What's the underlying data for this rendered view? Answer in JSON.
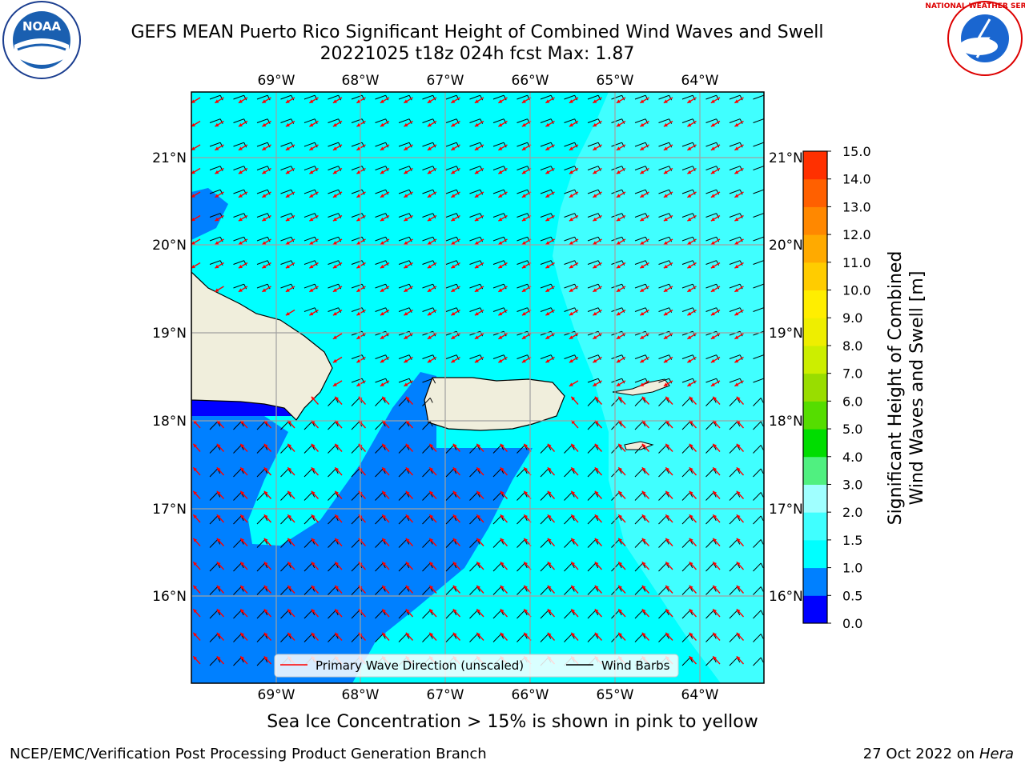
{
  "header": {
    "title_line1": "GEFS MEAN Puerto Rico Significant Height of Combined Wind Waves and Swell",
    "title_line2": "20221025 t18z 024h fcst   Max: 1.87"
  },
  "logos": {
    "noaa_text": "NOAA",
    "nws_text": "NATIONAL WEATHER SERVICE"
  },
  "map": {
    "lon_ticks": [
      "69°W",
      "68°W",
      "67°W",
      "66°W",
      "65°W",
      "64°W"
    ],
    "lat_ticks": [
      "21°N",
      "20°N",
      "19°N",
      "18°N",
      "17°N",
      "16°N"
    ],
    "legend": {
      "wave_label": "Primary Wave Direction (unscaled)",
      "barb_label": "Wind Barbs",
      "wave_color": "#ff0000",
      "barb_color": "#000000"
    }
  },
  "colorbar": {
    "label_line1": "Significant Height of Combined",
    "label_line2": "Wind Waves and Swell [m]",
    "ticks": [
      "0.0",
      "0.5",
      "1.0",
      "1.5",
      "2.0",
      "3.0",
      "4.0",
      "5.0",
      "6.0",
      "7.0",
      "8.0",
      "9.0",
      "10.0",
      "11.0",
      "12.0",
      "13.0",
      "14.0",
      "15.0"
    ],
    "colors": [
      "#0000ff",
      "#0080ff",
      "#00ffff",
      "#40ffff",
      "#a0ffff",
      "#50f080",
      "#00dd00",
      "#55dd00",
      "#99dd00",
      "#ccee00",
      "#eeee00",
      "#ffee00",
      "#ffcc00",
      "#ffaa00",
      "#ff8800",
      "#ff6000",
      "#ff3000"
    ]
  },
  "caption": "Sea Ice Concentration > 15% is shown in pink to yellow",
  "footer": {
    "left": "NCEP/EMC/Verification Post Processing Product Generation Branch",
    "right_prefix": "27 Oct 2022 on ",
    "right_host": "Hera"
  }
}
